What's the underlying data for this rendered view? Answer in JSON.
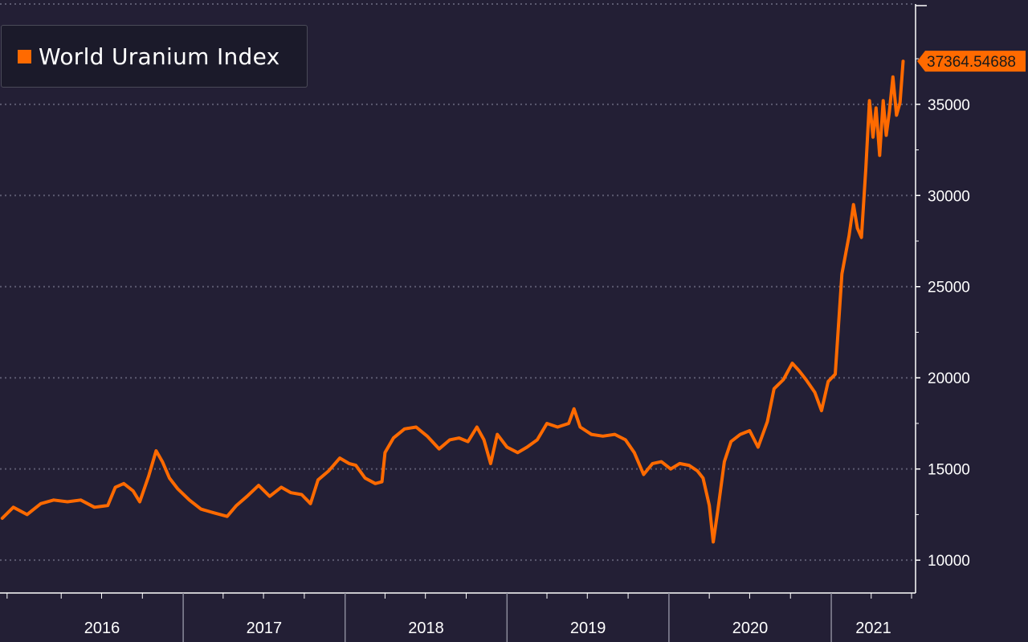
{
  "chart_data": {
    "type": "line",
    "title": "",
    "xlabel": "",
    "ylabel": "",
    "legend": {
      "placement": "top-left"
    },
    "series": [
      {
        "name": "World Uranium Index",
        "color": "#ff6a00",
        "last_value_label": "37364.54688",
        "points": [
          [
            "2015-11-20",
            12300
          ],
          [
            "2015-12-15",
            12900
          ],
          [
            "2016-01-15",
            12500
          ],
          [
            "2016-02-15",
            13100
          ],
          [
            "2016-03-15",
            13300
          ],
          [
            "2016-04-15",
            13200
          ],
          [
            "2016-05-15",
            13300
          ],
          [
            "2016-06-15",
            12900
          ],
          [
            "2016-07-15",
            13000
          ],
          [
            "2016-08-01",
            14000
          ],
          [
            "2016-08-20",
            14200
          ],
          [
            "2016-09-10",
            13800
          ],
          [
            "2016-09-25",
            13200
          ],
          [
            "2016-10-15",
            14600
          ],
          [
            "2016-11-01",
            16000
          ],
          [
            "2016-11-15",
            15400
          ],
          [
            "2016-12-01",
            14500
          ],
          [
            "2016-12-20",
            13900
          ],
          [
            "2017-01-15",
            13300
          ],
          [
            "2017-02-10",
            12800
          ],
          [
            "2017-03-10",
            12600
          ],
          [
            "2017-04-10",
            12400
          ],
          [
            "2017-05-01",
            13000
          ],
          [
            "2017-05-25",
            13500
          ],
          [
            "2017-06-20",
            14100
          ],
          [
            "2017-07-15",
            13500
          ],
          [
            "2017-08-10",
            14000
          ],
          [
            "2017-09-01",
            13700
          ],
          [
            "2017-09-25",
            13600
          ],
          [
            "2017-10-15",
            13100
          ],
          [
            "2017-11-01",
            14400
          ],
          [
            "2017-11-25",
            14900
          ],
          [
            "2017-12-20",
            15600
          ],
          [
            "2018-01-10",
            15300
          ],
          [
            "2018-01-25",
            15200
          ],
          [
            "2018-02-15",
            14500
          ],
          [
            "2018-03-10",
            14200
          ],
          [
            "2018-03-25",
            14300
          ],
          [
            "2018-04-01",
            15900
          ],
          [
            "2018-04-20",
            16700
          ],
          [
            "2018-05-15",
            17200
          ],
          [
            "2018-06-10",
            17300
          ],
          [
            "2018-07-05",
            16800
          ],
          [
            "2018-08-01",
            16100
          ],
          [
            "2018-08-25",
            16600
          ],
          [
            "2018-09-15",
            16700
          ],
          [
            "2018-10-05",
            16500
          ],
          [
            "2018-10-25",
            17300
          ],
          [
            "2018-11-10",
            16600
          ],
          [
            "2018-11-25",
            15300
          ],
          [
            "2018-12-10",
            16900
          ],
          [
            "2019-01-01",
            16200
          ],
          [
            "2019-01-25",
            15900
          ],
          [
            "2019-02-15",
            16200
          ],
          [
            "2019-03-10",
            16600
          ],
          [
            "2019-04-01",
            17500
          ],
          [
            "2019-04-25",
            17300
          ],
          [
            "2019-05-20",
            17500
          ],
          [
            "2019-06-01",
            18300
          ],
          [
            "2019-06-15",
            17300
          ],
          [
            "2019-07-10",
            16900
          ],
          [
            "2019-08-05",
            16800
          ],
          [
            "2019-09-01",
            16900
          ],
          [
            "2019-09-25",
            16600
          ],
          [
            "2019-10-15",
            15900
          ],
          [
            "2019-11-05",
            14700
          ],
          [
            "2019-11-25",
            15300
          ],
          [
            "2019-12-15",
            15400
          ],
          [
            "2020-01-05",
            15000
          ],
          [
            "2020-01-25",
            15300
          ],
          [
            "2020-02-15",
            15200
          ],
          [
            "2020-03-05",
            14900
          ],
          [
            "2020-03-18",
            14500
          ],
          [
            "2020-04-01",
            13000
          ],
          [
            "2020-04-10",
            11000
          ],
          [
            "2020-04-20",
            12700
          ],
          [
            "2020-05-05",
            15400
          ],
          [
            "2020-05-20",
            16500
          ],
          [
            "2020-06-10",
            16900
          ],
          [
            "2020-07-01",
            17100
          ],
          [
            "2020-07-20",
            16200
          ],
          [
            "2020-08-10",
            17600
          ],
          [
            "2020-08-25",
            19400
          ],
          [
            "2020-09-15",
            19900
          ],
          [
            "2020-10-05",
            20800
          ],
          [
            "2020-10-20",
            20400
          ],
          [
            "2020-11-05",
            19900
          ],
          [
            "2020-11-25",
            19200
          ],
          [
            "2020-12-10",
            18200
          ],
          [
            "2020-12-25",
            19800
          ],
          [
            "2021-01-10",
            20200
          ],
          [
            "2021-01-25",
            25700
          ],
          [
            "2021-02-10",
            27800
          ],
          [
            "2021-02-20",
            29500
          ],
          [
            "2021-03-01",
            28200
          ],
          [
            "2021-03-10",
            27700
          ],
          [
            "2021-03-20",
            31500
          ],
          [
            "2021-03-28",
            35200
          ],
          [
            "2021-04-05",
            33200
          ],
          [
            "2021-04-12",
            34800
          ],
          [
            "2021-04-20",
            32200
          ],
          [
            "2021-04-28",
            35200
          ],
          [
            "2021-05-05",
            33300
          ],
          [
            "2021-05-12",
            34600
          ],
          [
            "2021-05-20",
            36500
          ],
          [
            "2021-05-28",
            34400
          ],
          [
            "2021-06-05",
            35100
          ],
          [
            "2021-06-12",
            37364.54688
          ]
        ]
      }
    ],
    "x_axis": {
      "type": "date",
      "range": [
        "2015-11-15",
        "2021-07-10"
      ],
      "tick_labels": [
        "2016",
        "2017",
        "2018",
        "2019",
        "2020",
        "2021"
      ]
    },
    "y_axis": {
      "position": "right",
      "range": [
        8200,
        40500
      ],
      "ticks": [
        10000,
        15000,
        20000,
        25000,
        30000,
        35000
      ],
      "tick_labels": [
        "10000",
        "15000",
        "20000",
        "25000",
        "30000",
        "35000"
      ]
    },
    "grid": {
      "horizontal": true,
      "style": "dotted"
    }
  }
}
